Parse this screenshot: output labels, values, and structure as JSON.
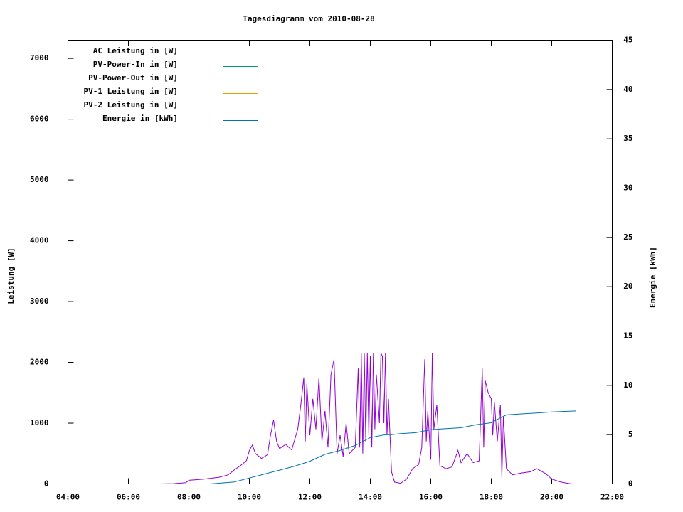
{
  "chart_data": {
    "type": "line",
    "title": "Tagesdiagramm vom 2010-08-28",
    "ylabel": "Leistung [W]",
    "y2label": "Energie [kWh]",
    "xlim": [
      4,
      22
    ],
    "xticks": [
      {
        "value": 4,
        "label": "04:00"
      },
      {
        "value": 6,
        "label": "06:00"
      },
      {
        "value": 8,
        "label": "08:00"
      },
      {
        "value": 10,
        "label": "10:00"
      },
      {
        "value": 12,
        "label": "12:00"
      },
      {
        "value": 14,
        "label": "14:00"
      },
      {
        "value": 16,
        "label": "16:00"
      },
      {
        "value": 18,
        "label": "18:00"
      },
      {
        "value": 20,
        "label": "20:00"
      },
      {
        "value": 22,
        "label": "22:00"
      }
    ],
    "ylim": [
      0,
      7300
    ],
    "yticks": [
      0,
      1000,
      2000,
      3000,
      4000,
      5000,
      6000,
      7000
    ],
    "y2lim": [
      0,
      45
    ],
    "y2ticks": [
      0,
      5,
      10,
      15,
      20,
      25,
      30,
      35,
      40,
      45
    ],
    "legend": "top-left",
    "series": [
      {
        "name": "AC Leistung in [W]",
        "color": "#9400d3",
        "x": [
          7.0,
          7.5,
          7.9,
          8.0,
          8.5,
          9.0,
          9.3,
          9.5,
          9.7,
          9.9,
          10.0,
          10.1,
          10.2,
          10.4,
          10.6,
          10.7,
          10.8,
          10.9,
          11.0,
          11.2,
          11.4,
          11.6,
          11.7,
          11.8,
          11.85,
          11.9,
          12.0,
          12.1,
          12.2,
          12.3,
          12.4,
          12.5,
          12.6,
          12.7,
          12.8,
          12.9,
          13.0,
          13.1,
          13.2,
          13.3,
          13.5,
          13.6,
          13.65,
          13.7,
          13.75,
          13.8,
          13.85,
          13.9,
          13.95,
          14.0,
          14.05,
          14.1,
          14.15,
          14.2,
          14.3,
          14.35,
          14.4,
          14.45,
          14.5,
          14.55,
          14.6,
          14.7,
          14.8,
          15.0,
          15.2,
          15.4,
          15.6,
          15.7,
          15.8,
          15.85,
          15.9,
          16.0,
          16.05,
          16.1,
          16.2,
          16.3,
          16.5,
          16.7,
          16.9,
          17.0,
          17.2,
          17.4,
          17.6,
          17.7,
          17.75,
          17.8,
          17.9,
          18.0,
          18.05,
          18.1,
          18.2,
          18.3,
          18.35,
          18.4,
          18.5,
          18.7,
          19.0,
          19.3,
          19.5,
          19.8,
          20.0,
          20.3,
          20.6,
          20.7
        ],
        "values": [
          0,
          5,
          20,
          60,
          80,
          110,
          150,
          230,
          300,
          380,
          550,
          640,
          500,
          420,
          480,
          800,
          1050,
          700,
          580,
          650,
          560,
          900,
          1300,
          1750,
          700,
          1650,
          800,
          1400,
          900,
          1750,
          700,
          1200,
          600,
          1800,
          2050,
          500,
          800,
          450,
          1000,
          500,
          600,
          1900,
          600,
          2150,
          500,
          2150,
          700,
          2150,
          800,
          2100,
          600,
          2150,
          900,
          1800,
          1000,
          2150,
          2100,
          1000,
          2150,
          800,
          1400,
          200,
          30,
          10,
          80,
          250,
          320,
          600,
          2050,
          700,
          1200,
          400,
          2150,
          900,
          1300,
          300,
          250,
          280,
          550,
          350,
          500,
          350,
          380,
          1900,
          600,
          1700,
          1500,
          1400,
          800,
          1350,
          700,
          1300,
          100,
          1100,
          250,
          150,
          180,
          200,
          250,
          170,
          80,
          30,
          5,
          0
        ]
      },
      {
        "name": "PV-Power-In in [W]",
        "color": "#009e73",
        "x": [],
        "values": []
      },
      {
        "name": "PV-Power-Out in [W]",
        "color": "#56b4e9",
        "x": [],
        "values": []
      },
      {
        "name": "PV-1 Leistung in [W]",
        "color": "#e69f00",
        "x": [],
        "values": []
      },
      {
        "name": "PV-2 Leistung in [W]",
        "color": "#f0e442",
        "x": [],
        "values": []
      },
      {
        "name": "Energie in [kWh]",
        "color": "#0072b2",
        "axis": "y2",
        "x": [
          8.7,
          9.5,
          10.0,
          10.5,
          11.0,
          11.5,
          12.0,
          12.5,
          13.0,
          13.5,
          14.0,
          14.5,
          14.7,
          15.0,
          15.5,
          16.0,
          16.5,
          17.0,
          17.5,
          18.0,
          18.3,
          18.5,
          19.0,
          19.5,
          20.0,
          20.8
        ],
        "values": [
          0,
          0.2,
          0.6,
          1.0,
          1.4,
          1.8,
          2.3,
          3.0,
          3.4,
          3.9,
          4.7,
          5.0,
          5.0,
          5.1,
          5.2,
          5.5,
          5.6,
          5.7,
          6.0,
          6.2,
          6.7,
          7.0,
          7.1,
          7.2,
          7.3,
          7.4
        ]
      }
    ]
  }
}
